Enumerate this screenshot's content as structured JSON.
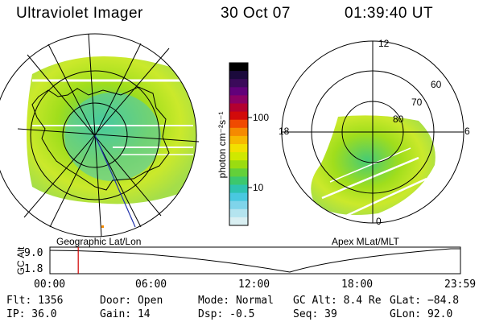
{
  "header": {
    "instrument": "Ultraviolet Imager",
    "date": "30 Oct 07",
    "time": "01:39:40 UT"
  },
  "left_panel": {
    "caption": "Geographic Lat/Lon"
  },
  "right_panel": {
    "caption": "Apex MLat/MLT",
    "mlt_labels": [
      "12",
      "18",
      "6",
      "0"
    ],
    "lat_labels": [
      "60",
      "70",
      "80"
    ]
  },
  "colorbar": {
    "label": "photon cm⁻²s⁻¹",
    "ticks": [
      "100",
      "10"
    ],
    "colors": [
      "#000000",
      "#1b0a3c",
      "#3b0a5a",
      "#62007a",
      "#8b0064",
      "#b30030",
      "#d20a0a",
      "#f04a00",
      "#f58a00",
      "#f7b800",
      "#f2e000",
      "#cfe800",
      "#9bdc10",
      "#63d03a",
      "#3cc86e",
      "#2ec3b0",
      "#49c8e0",
      "#7fd4ea",
      "#b4e4ef",
      "#d9eff2"
    ]
  },
  "timeline": {
    "axis_label": "GC Alt",
    "y_ticks": [
      "9.0",
      "1.8"
    ],
    "x_ticks": [
      "00:00",
      "06:00",
      "12:00",
      "18:00",
      "23:59"
    ],
    "marker_fraction": 0.069
  },
  "info": {
    "flt": "Flt: 1356",
    "ip": "IP: 36.0",
    "door": "Door: Open",
    "gain": "Gain: 14",
    "mode": "Mode: Normal",
    "dsp": "Dsp:   -0.5",
    "gc_alt": "GC Alt: 8.4 Re",
    "seq": "Seq: 39",
    "glat": "GLat: −84.8",
    "glon": "GLon: 92.0"
  }
}
